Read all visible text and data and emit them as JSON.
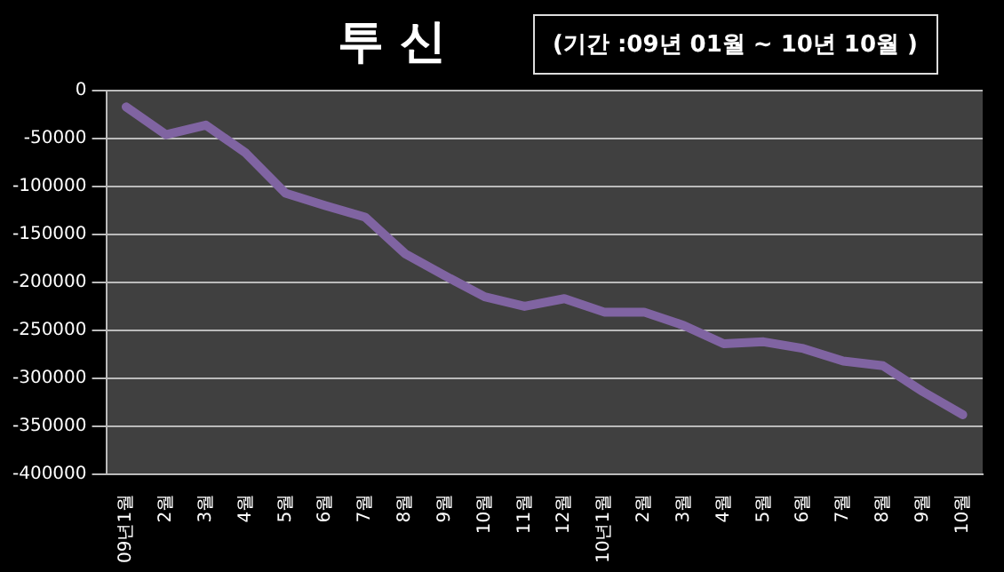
{
  "chart_data": {
    "type": "line",
    "title": "투 신",
    "subtitle": "(기간 :09년 01월 ~ 10년 10월 )",
    "categories": [
      "09년1월",
      "2월",
      "3월",
      "4월",
      "5월",
      "6월",
      "7월",
      "8월",
      "9월",
      "10월",
      "11월",
      "12월",
      "10년1월",
      "2월",
      "3월",
      "4월",
      "5월",
      "6월",
      "7월",
      "8월",
      "9월",
      "10월"
    ],
    "series": [
      {
        "color": "#8064a2",
        "values": [
          -17000,
          -46000,
          -36000,
          -65000,
          -107000,
          -120000,
          -132000,
          -170000,
          -193000,
          -215000,
          -225000,
          -217000,
          -231000,
          -231000,
          -245000,
          -264000,
          -262000,
          -269000,
          -282000,
          -287000,
          -314000,
          -338000
        ]
      }
    ],
    "ylim": [
      -400000,
      0
    ],
    "yticks": [
      -400000,
      -350000,
      -300000,
      -250000,
      -200000,
      -150000,
      -100000,
      -50000,
      0
    ],
    "grid": "y",
    "legend": false,
    "marker": "none",
    "line_style": "solid"
  }
}
